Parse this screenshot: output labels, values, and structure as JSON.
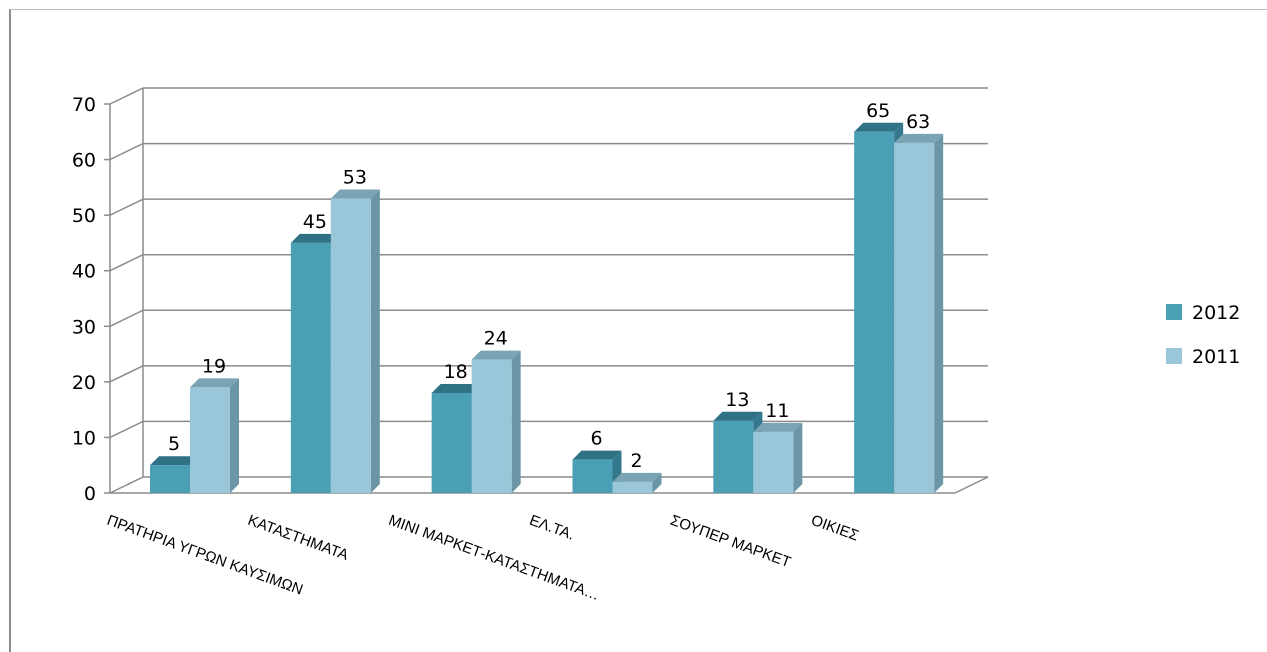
{
  "colors": {
    "s2012_front": "#4a9fb5",
    "s2012_top": "#2f7185",
    "s2012_side": "#33788c",
    "s2011_front": "#99c6d8",
    "s2011_top": "#7aa4b4",
    "s2011_side": "#6c96a6",
    "grid": "#8c8c8c"
  },
  "chart_data": {
    "type": "bar",
    "title": "",
    "xlabel": "",
    "ylabel": "",
    "ylim": [
      0,
      70
    ],
    "yticks": [
      "0",
      "10",
      "20",
      "30",
      "40",
      "50",
      "60",
      "70"
    ],
    "categories": [
      "ΠΡΑΤΗΡΙΑ ΥΓΡΩΝ ΚΑΥΣΙΜΩΝ",
      "ΚΑΤΑΣΤΗΜΑΤΑ",
      "ΜΙΝΙ ΜΑΡΚΕΤ-ΚΑΤΑΣΤΗΜΑΤΑ…",
      "ΕΛ.ΤΑ.",
      "ΣΟΥΠΕΡ ΜΑΡΚΕΤ",
      "ΟΙΚΙΕΣ"
    ],
    "series": [
      {
        "name": "2012",
        "values": [
          5,
          45,
          18,
          6,
          13,
          65
        ]
      },
      {
        "name": "2011",
        "values": [
          19,
          53,
          24,
          2,
          11,
          63
        ]
      }
    ],
    "grid": true,
    "legend": "right",
    "style": "3d-clustered-column"
  }
}
